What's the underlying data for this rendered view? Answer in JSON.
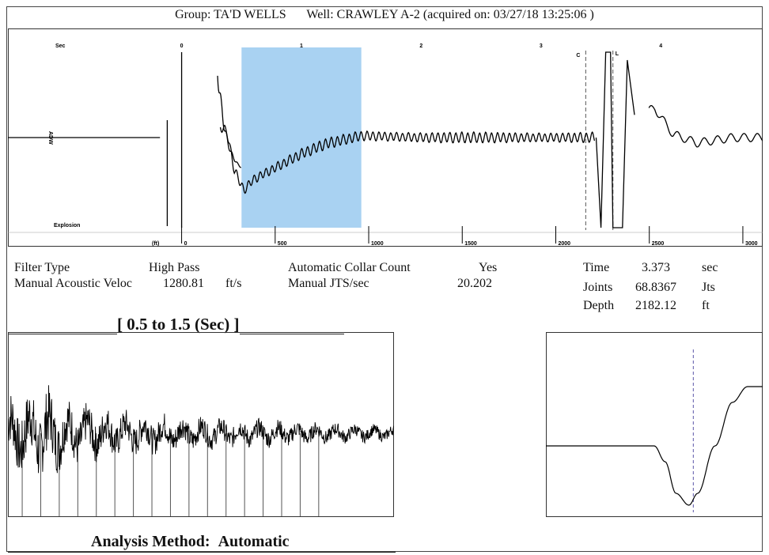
{
  "header": {
    "group": "Group: TA'D WELLS",
    "well": "Well: CRAWLEY A-2 (acquired on: 03/27/18 13:25:06 )"
  },
  "params": {
    "filter_type_label": "Filter Type",
    "filter_type_value": "High Pass",
    "velocity_label": "Manual Acoustic Veloc",
    "velocity_value": "1280.81",
    "velocity_unit": "ft/s",
    "collar_label": "Automatic Collar Count",
    "collar_value": "Yes",
    "jts_label": "Manual JTS/sec",
    "jts_value": "20.202",
    "time_label": "Time",
    "time_value": "3.373",
    "time_unit": "sec",
    "joints_label": "Joints",
    "joints_value": "68.8367",
    "joints_unit": "Jts",
    "depth_label": "Depth",
    "depth_value": "2182.12",
    "depth_unit": "ft"
  },
  "zoom_title": "[ 0.5  to  1.5 (Sec) ]",
  "footer": {
    "analysis_label": "Analysis Method:",
    "analysis_value": "Automatic"
  },
  "chart_data": [
    {
      "type": "line",
      "name": "acoustic-trace",
      "x_unit_label": "Sec",
      "x_ticks": [
        "0",
        "1",
        "2",
        "3",
        "4"
      ],
      "x_tick_values": [
        0,
        1,
        2,
        3,
        4
      ],
      "depth_unit_label": "(ft)",
      "depth_ticks": [
        "0",
        "500",
        "1000",
        "1500",
        "2000",
        "2500",
        "3000"
      ],
      "depth_tick_values": [
        0,
        500,
        1000,
        1500,
        2000,
        2500,
        3000
      ],
      "xlim": [
        -1.45,
        4.85
      ],
      "ylim": [
        -1.0,
        1.0
      ],
      "y_label": "ADW",
      "marker_label": "Explosion",
      "highlight_range": [
        0.5,
        1.5
      ],
      "highlight_color": "#a9d2f2",
      "cursor_time": 3.373,
      "cursor_label": "C",
      "liquid_label": "L",
      "x": [
        -1.2,
        -0.2,
        -0.14,
        -0.1,
        0.3,
        0.38,
        0.44,
        0.52,
        0.6,
        0.8,
        1.0,
        1.2,
        1.5,
        2.0,
        2.5,
        3.0,
        3.4,
        3.62,
        3.78,
        3.95,
        4.1,
        4.3,
        4.6,
        4.85
      ],
      "y": [
        0.0,
        0.0,
        0.0,
        0.0,
        0.14,
        0.06,
        -0.36,
        -0.58,
        -0.46,
        -0.32,
        -0.18,
        -0.07,
        0.02,
        0.0,
        0.0,
        0.0,
        0.0,
        0.0,
        0.25,
        0.32,
        0.04,
        -0.06,
        0.0,
        0.0
      ]
    },
    {
      "type": "line",
      "name": "zoomed-collar-signal",
      "title": "[ 0.5  to  1.5 (Sec) ]",
      "xlim": [
        0.5,
        1.5
      ],
      "ylim": [
        -1.0,
        1.0
      ],
      "collar_marks_sec": [
        0.537,
        0.585,
        0.633,
        0.681,
        0.729,
        0.777,
        0.825,
        0.873,
        0.921,
        0.969,
        1.017,
        1.065,
        1.113,
        1.161,
        1.209,
        1.257,
        1.305
      ],
      "x": [
        0.5,
        0.55,
        0.6,
        0.65,
        0.7,
        0.8,
        0.9,
        1.0,
        1.1,
        1.2,
        1.3,
        1.4,
        1.5
      ],
      "y": [
        0.6,
        0.65,
        0.7,
        0.5,
        0.45,
        0.35,
        0.3,
        0.25,
        0.22,
        0.2,
        0.17,
        0.14,
        0.12
      ]
    },
    {
      "type": "line",
      "name": "single-collar-detail",
      "xlim": [
        0,
        1
      ],
      "ylim": [
        -1.0,
        1.0
      ],
      "cursor_x": 0.68,
      "x": [
        0.0,
        0.3,
        0.5,
        0.55,
        0.6,
        0.66,
        0.7,
        0.78,
        0.86,
        0.93,
        1.0
      ],
      "y": [
        0.0,
        0.0,
        0.0,
        -0.2,
        -0.6,
        -0.75,
        -0.6,
        0.0,
        0.55,
        0.75,
        0.75
      ]
    }
  ]
}
